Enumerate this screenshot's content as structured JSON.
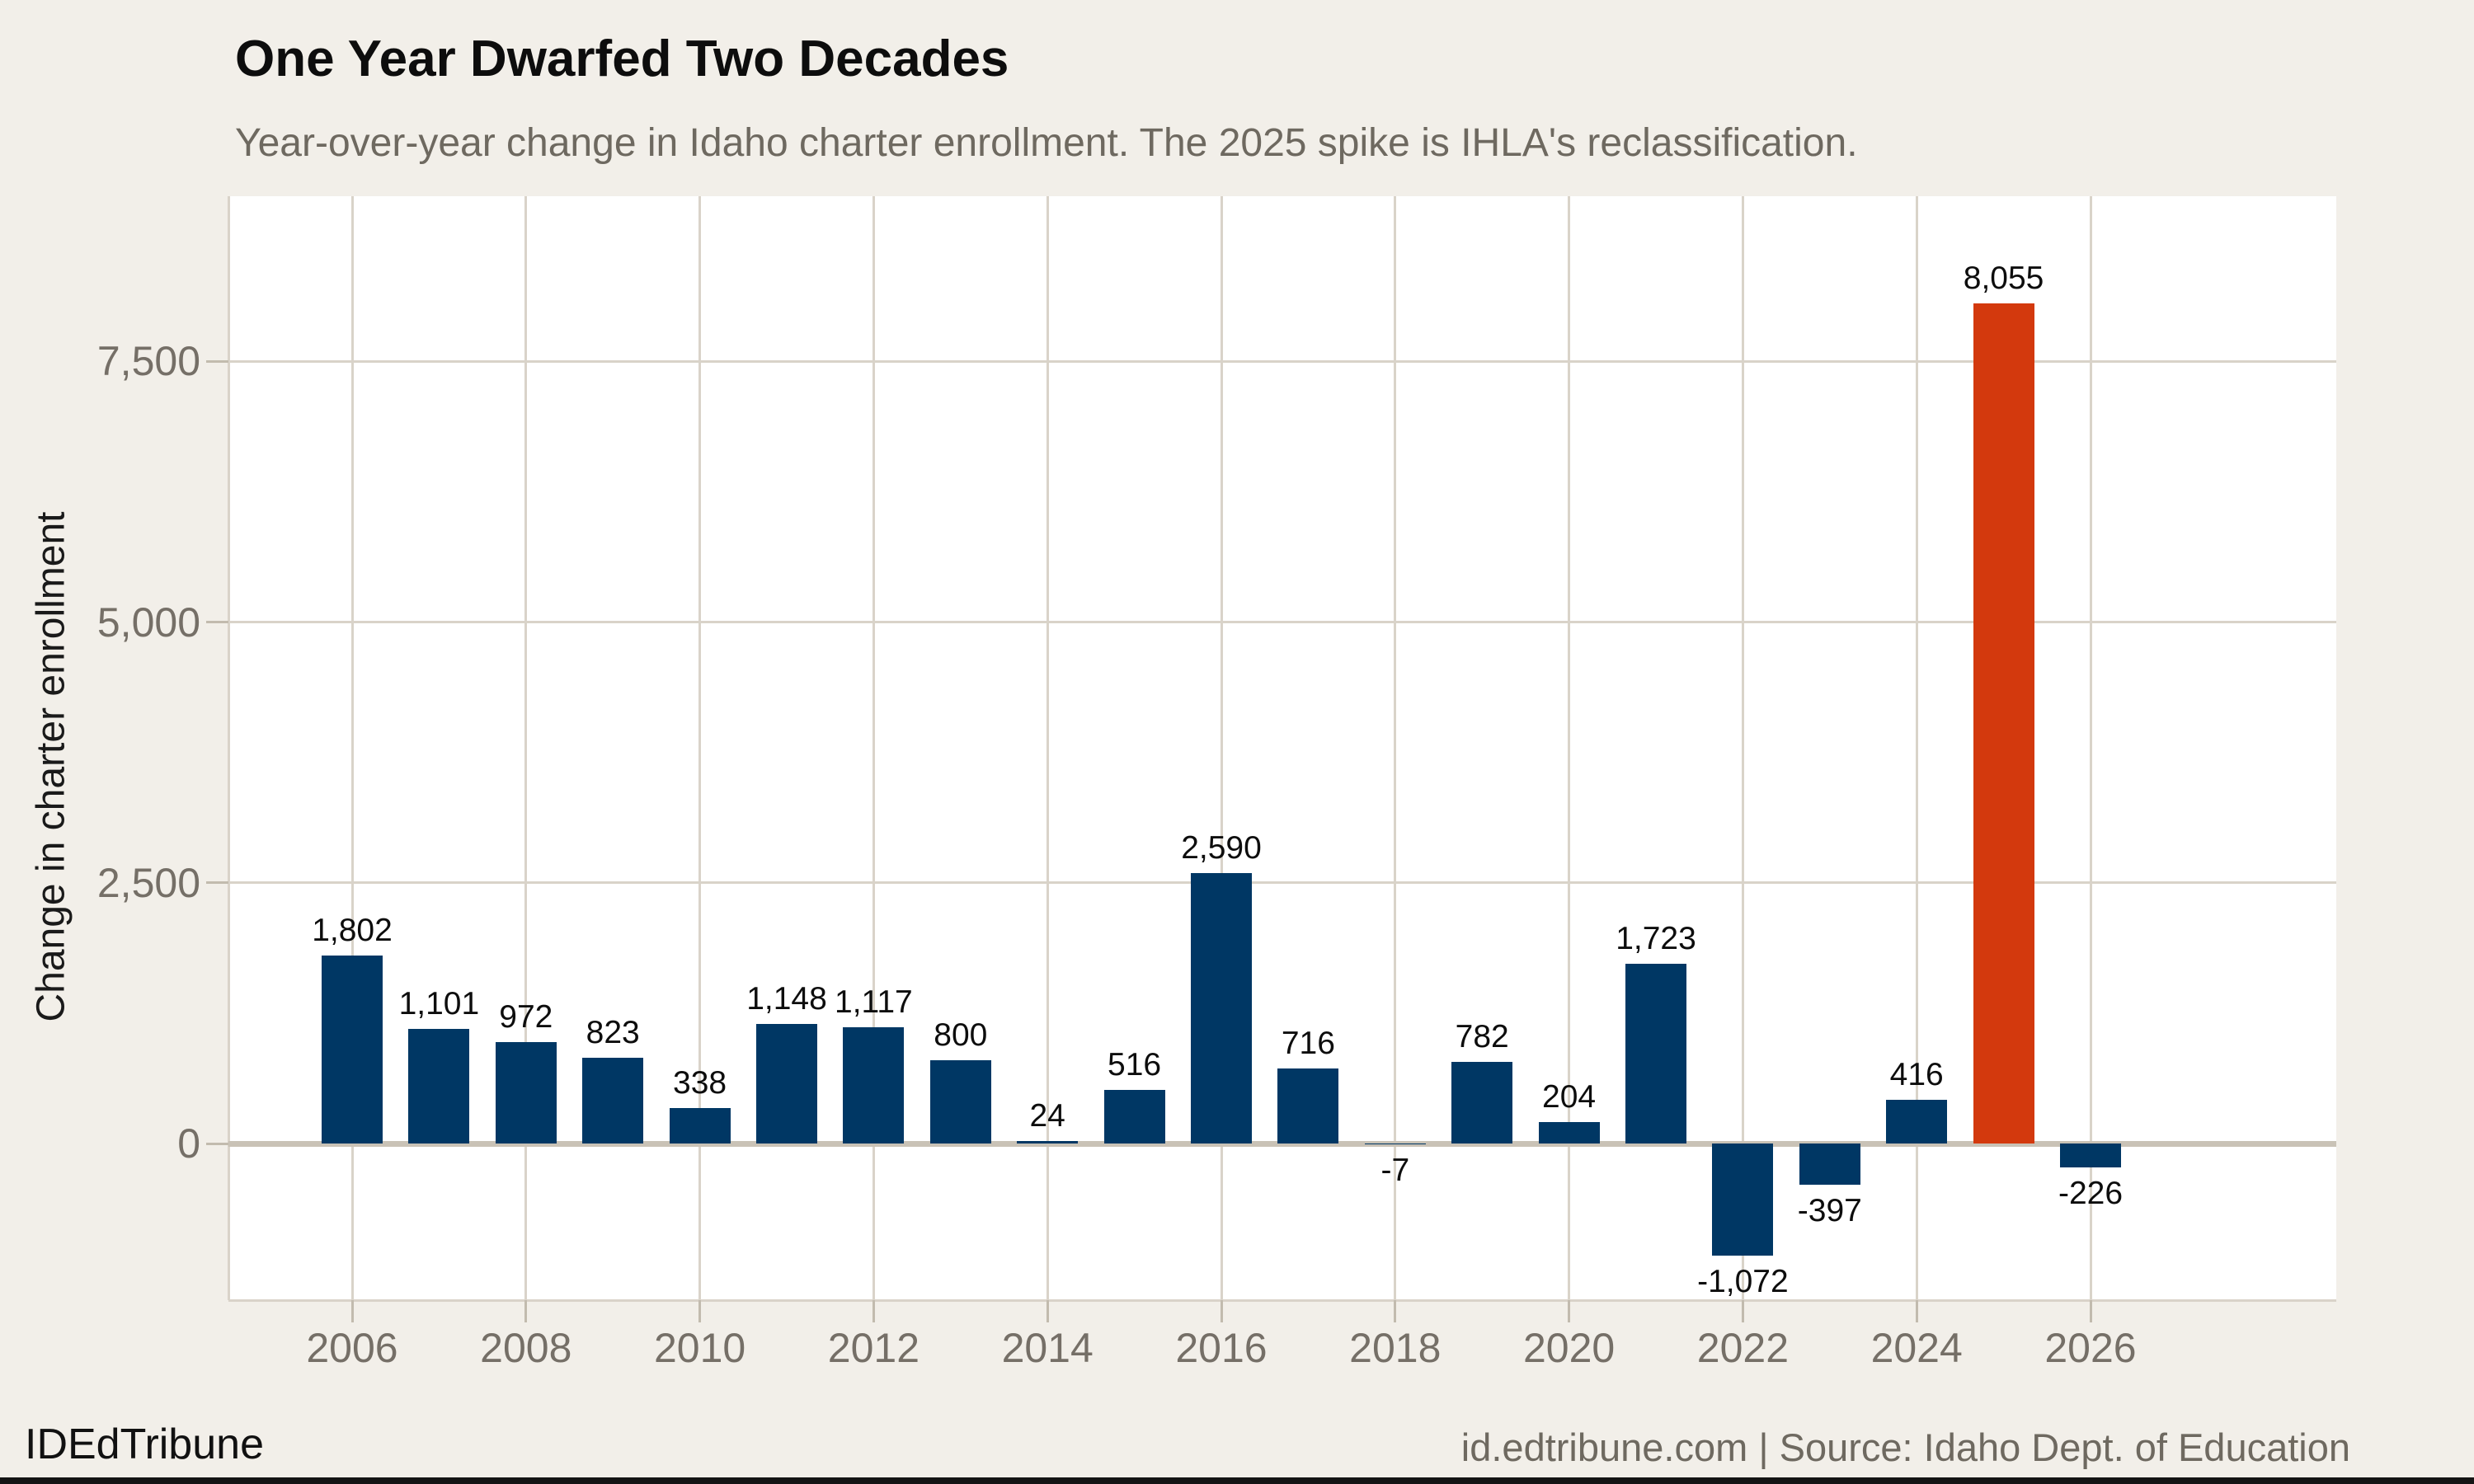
{
  "header": {
    "title": "One Year Dwarfed Two Decades",
    "subtitle": "Year-over-year change in Idaho charter enrollment. The 2025 spike is IHLA's reclassification."
  },
  "footer": {
    "brand": "IDEdTribune",
    "source": "id.edtribune.com | Source: Idaho Dept. of Education"
  },
  "chart_data": {
    "type": "bar",
    "title": "One Year Dwarfed Two Decades",
    "subtitle": "Year-over-year change in Idaho charter enrollment. The 2025 spike is IHLA's reclassification.",
    "xlabel": "",
    "ylabel": "Change in charter enrollment",
    "x": [
      2006,
      2007,
      2008,
      2009,
      2010,
      2011,
      2012,
      2013,
      2014,
      2015,
      2016,
      2017,
      2018,
      2019,
      2020,
      2021,
      2022,
      2023,
      2024,
      2025,
      2026
    ],
    "values": [
      1802,
      1101,
      972,
      823,
      338,
      1148,
      1117,
      800,
      24,
      516,
      2590,
      716,
      -7,
      782,
      204,
      1723,
      -1072,
      -397,
      416,
      8055,
      -226
    ],
    "value_labels": [
      "1,802",
      "1,101",
      "972",
      "823",
      "338",
      "1,148",
      "1,117",
      "800",
      "24",
      "516",
      "2,590",
      "716",
      "-7",
      "782",
      "204",
      "1,723",
      "-1,072",
      "-397",
      "416",
      "8,055",
      "-226"
    ],
    "highlight_x": 2025,
    "annotation": "The 2025 spike is IHLA's reclassification.",
    "xticks": [
      2006,
      2008,
      2010,
      2012,
      2014,
      2016,
      2018,
      2020,
      2022,
      2024,
      2026
    ],
    "xtick_labels": [
      "2006",
      "2008",
      "2010",
      "2012",
      "2014",
      "2016",
      "2018",
      "2020",
      "2022",
      "2024",
      "2026"
    ],
    "yticks": [
      0,
      2500,
      5000,
      7500
    ],
    "ytick_labels": [
      "0",
      "2,500",
      "5,000",
      "7,500"
    ],
    "ylim": [
      -1500,
      9100
    ],
    "grid": true,
    "legend": null,
    "colors": {
      "bar": "#003764",
      "highlight": "#d3390d",
      "background": "#f2efe9",
      "plot_background": "#ffffff",
      "gridline": "#d9d3c9",
      "axis_line": "#c9c2b6",
      "tick_text": "#756f67",
      "subtitle_text": "#6e6960",
      "title_text": "#0d0d0d"
    }
  }
}
